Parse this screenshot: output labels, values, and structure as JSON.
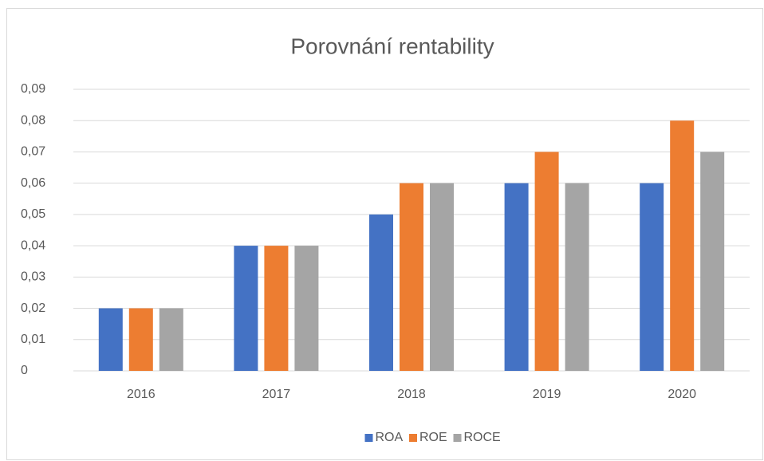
{
  "chart_data": {
    "type": "bar",
    "title": "Porovnání rentability",
    "categories": [
      "2016",
      "2017",
      "2018",
      "2019",
      "2020"
    ],
    "series": [
      {
        "name": "ROA",
        "color": "#4472c4",
        "values": [
          0.02,
          0.04,
          0.05,
          0.06,
          0.06
        ]
      },
      {
        "name": "ROE",
        "color": "#ed7d31",
        "values": [
          0.02,
          0.04,
          0.06,
          0.07,
          0.08
        ]
      },
      {
        "name": "ROCE",
        "color": "#a5a5a5",
        "values": [
          0.02,
          0.04,
          0.06,
          0.06,
          0.07
        ]
      }
    ],
    "ylim": [
      0,
      0.09
    ],
    "yticks": [
      0,
      {
        "value": 0.01,
        "label": "0,01"
      },
      {
        "value": 0.02,
        "label": "0,02"
      },
      {
        "value": 0.03,
        "label": "0,03"
      },
      {
        "value": 0.04,
        "label": "0,04"
      },
      {
        "value": 0.05,
        "label": "0,05"
      },
      {
        "value": 0.06,
        "label": "0,06"
      },
      {
        "value": 0.07,
        "label": "0,07"
      },
      {
        "value": 0.08,
        "label": "0,08"
      },
      {
        "value": 0.09,
        "label": "0,09"
      }
    ],
    "grid": true,
    "legend": "bottom"
  }
}
